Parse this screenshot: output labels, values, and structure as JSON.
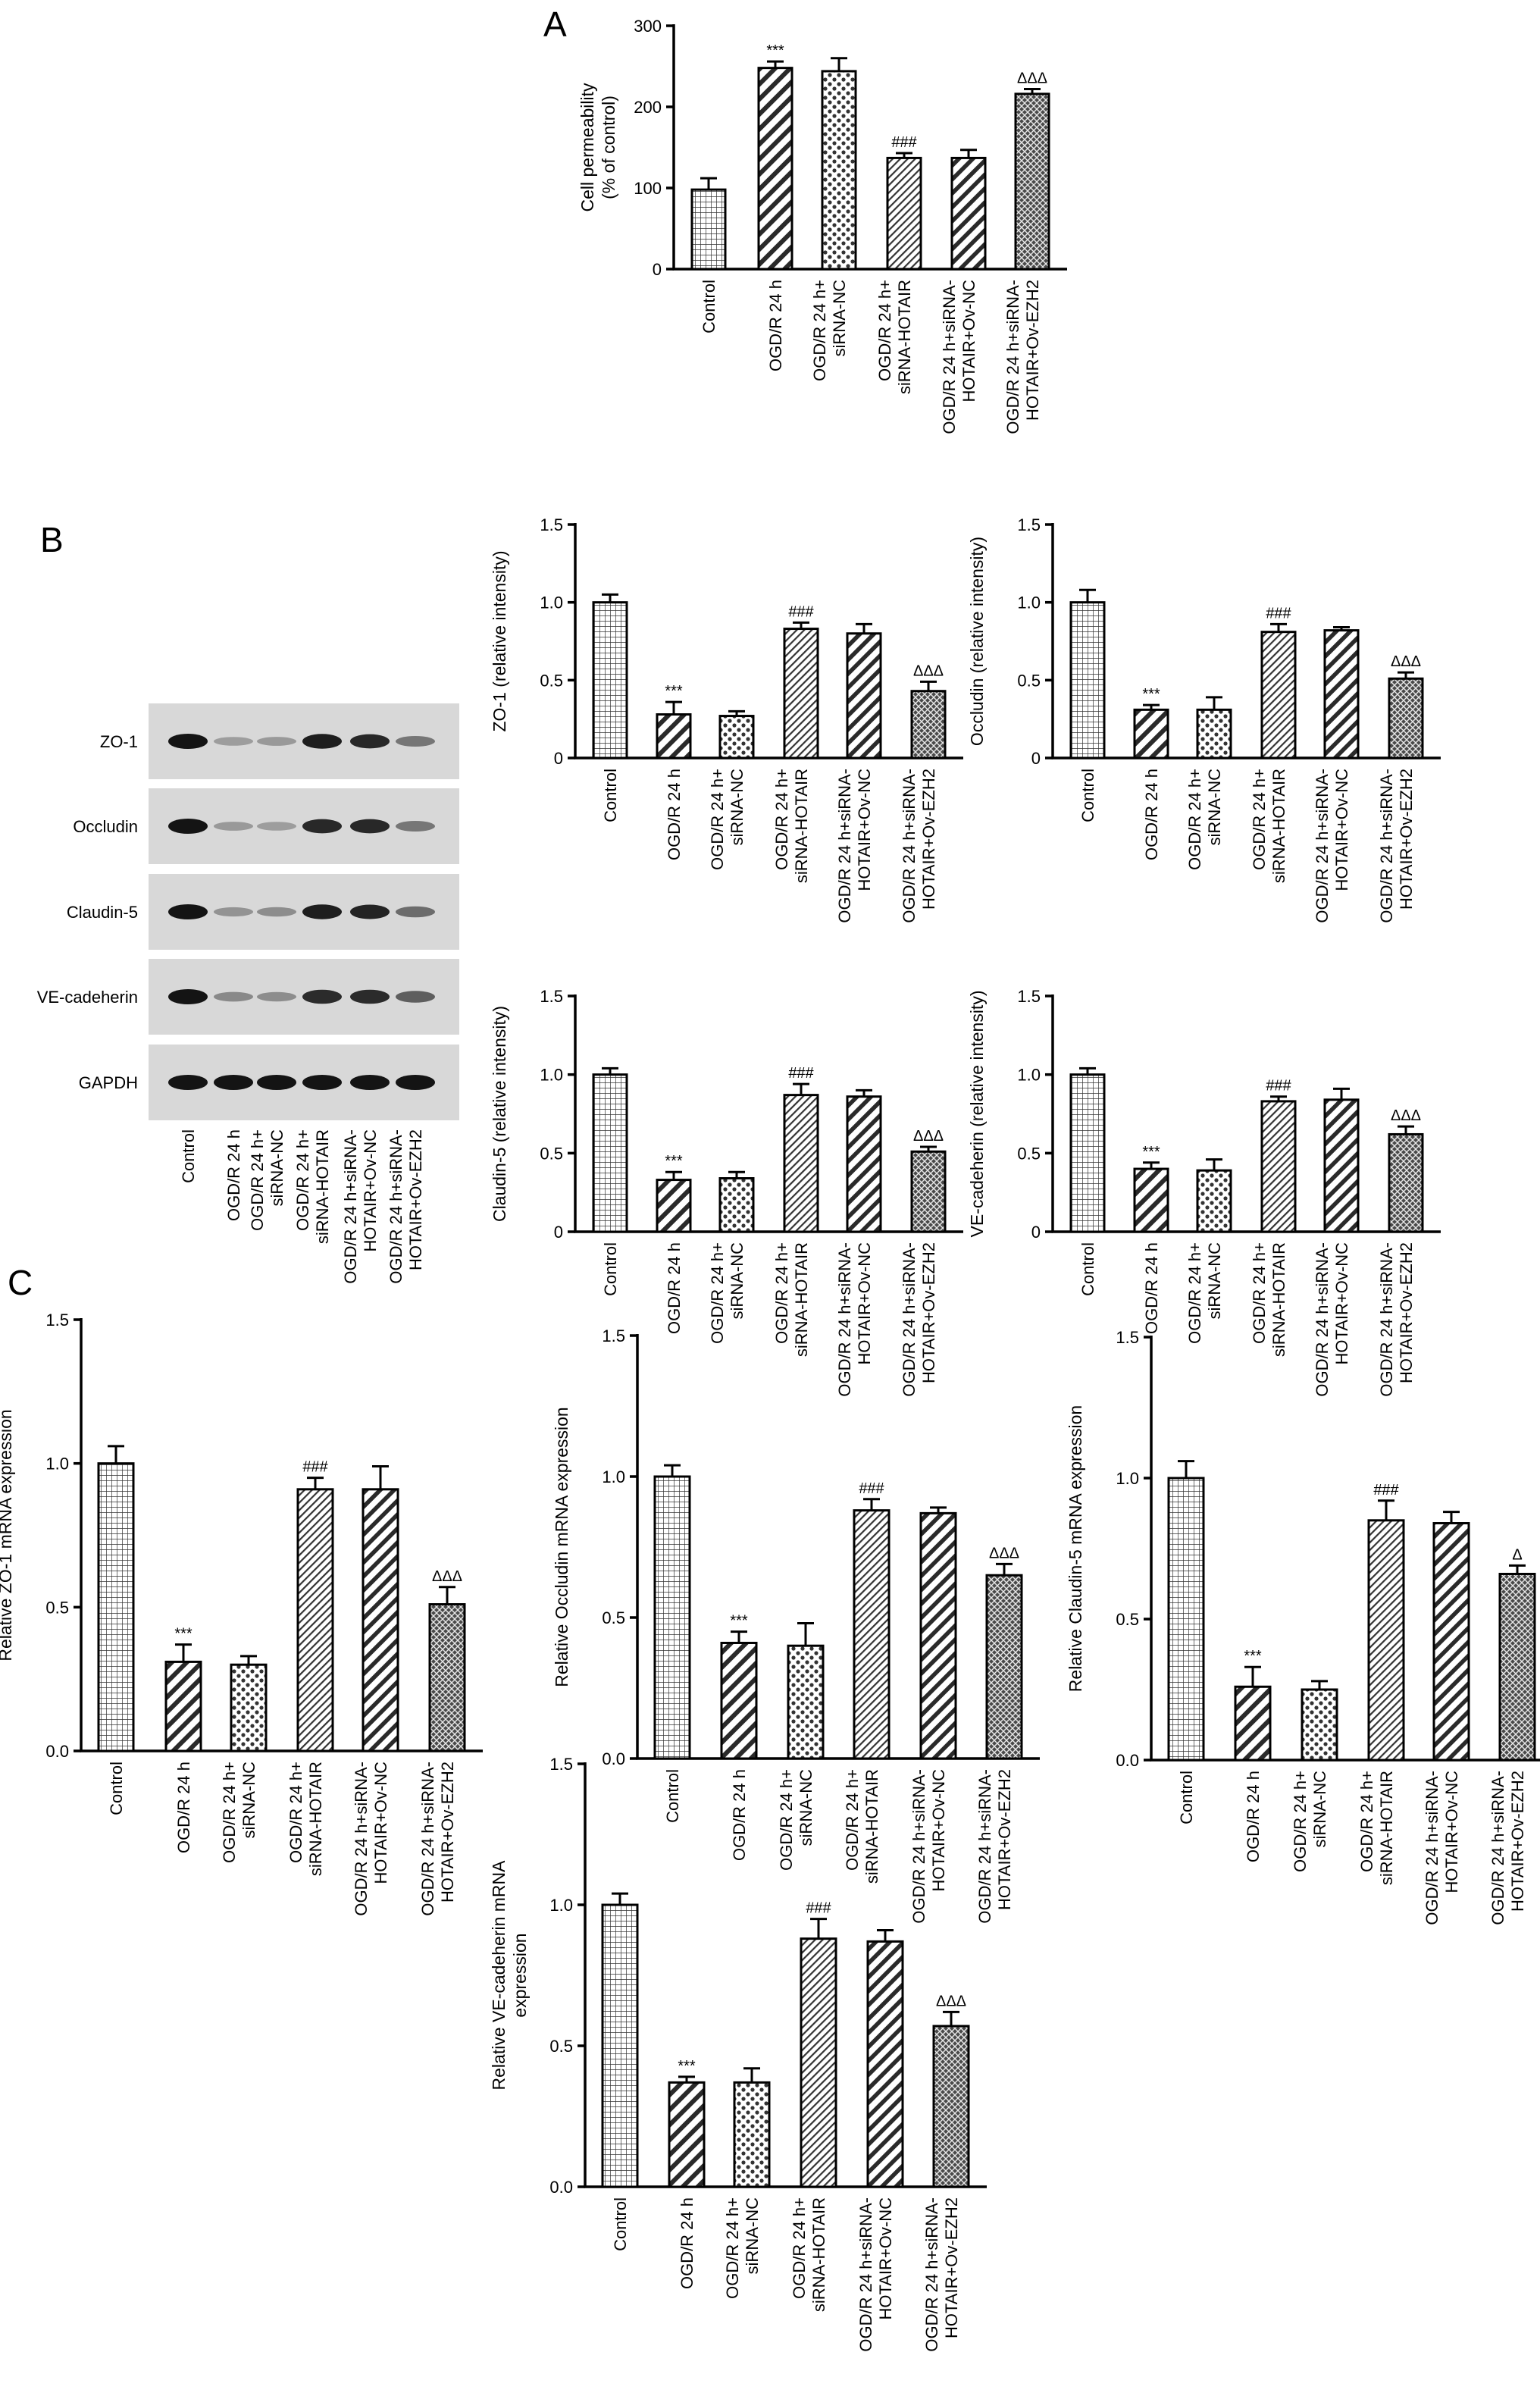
{
  "panel_labels": [
    "A",
    "B",
    "C"
  ],
  "chart_data": [
    {
      "id": "A",
      "type": "bar",
      "ylabel": [
        "Cell permeability",
        "(% of control)"
      ],
      "ylim": [
        0,
        300
      ],
      "yticks": [
        0,
        100,
        200,
        300
      ],
      "categories": [
        [
          "Control"
        ],
        [
          "OGD/R 24 h"
        ],
        [
          "OGD/R 24 h+",
          "siRNA-NC"
        ],
        [
          "OGD/R 24 h+",
          "siRNA-HOTAIR"
        ],
        [
          "OGD/R 24 h+siRNA-",
          "HOTAIR+Ov-NC"
        ],
        [
          "OGD/R 24 h+siRNA-",
          "HOTAIR+Ov-EZH2"
        ]
      ],
      "values": [
        98,
        248,
        244,
        137,
        137,
        216
      ],
      "errors": [
        14,
        8,
        16,
        6,
        10,
        6
      ],
      "significance": [
        "",
        "***",
        "",
        "###",
        "",
        "ΔΔΔ"
      ]
    },
    {
      "id": "B-ZO1",
      "type": "bar",
      "ylabel": [
        "ZO-1 (relative intensity)"
      ],
      "ylim": [
        0,
        1.5
      ],
      "yticks": [
        "0",
        "0.5",
        "1.0",
        "1.5"
      ],
      "categories": [
        [
          "Control"
        ],
        [
          "OGD/R 24 h"
        ],
        [
          "OGD/R 24 h+",
          "siRNA-NC"
        ],
        [
          "OGD/R 24 h+",
          "siRNA-HOTAIR"
        ],
        [
          "OGD/R 24 h+siRNA-",
          "HOTAIR+Ov-NC"
        ],
        [
          "OGD/R 24 h+siRNA-",
          "HOTAIR+Ov-EZH2"
        ]
      ],
      "values": [
        1.0,
        0.28,
        0.27,
        0.83,
        0.8,
        0.43
      ],
      "errors": [
        0.05,
        0.08,
        0.03,
        0.04,
        0.06,
        0.06
      ],
      "significance": [
        "",
        "***",
        "",
        "###",
        "",
        "ΔΔΔ"
      ]
    },
    {
      "id": "B-Occludin",
      "type": "bar",
      "ylabel": [
        "Occludin (relative intensity)"
      ],
      "ylim": [
        0,
        1.5
      ],
      "yticks": [
        "0",
        "0.5",
        "1.0",
        "1.5"
      ],
      "categories": [
        [
          "Control"
        ],
        [
          "OGD/R 24 h"
        ],
        [
          "OGD/R 24 h+",
          "siRNA-NC"
        ],
        [
          "OGD/R 24 h+",
          "siRNA-HOTAIR"
        ],
        [
          "OGD/R 24 h+siRNA-",
          "HOTAIR+Ov-NC"
        ],
        [
          "OGD/R 24 h+siRNA-",
          "HOTAIR+Ov-EZH2"
        ]
      ],
      "values": [
        1.0,
        0.31,
        0.31,
        0.81,
        0.82,
        0.51
      ],
      "errors": [
        0.08,
        0.03,
        0.08,
        0.05,
        0.02,
        0.04
      ],
      "significance": [
        "",
        "***",
        "",
        "###",
        "",
        "ΔΔΔ"
      ]
    },
    {
      "id": "B-Claudin5",
      "type": "bar",
      "ylabel": [
        "Claudin-5 (relative intensity)"
      ],
      "ylim": [
        0,
        1.5
      ],
      "yticks": [
        "0",
        "0.5",
        "1.0",
        "1.5"
      ],
      "categories": [
        [
          "Control"
        ],
        [
          "OGD/R 24 h"
        ],
        [
          "OGD/R 24 h+",
          "siRNA-NC"
        ],
        [
          "OGD/R 24 h+",
          "siRNA-HOTAIR"
        ],
        [
          "OGD/R 24 h+siRNA-",
          "HOTAIR+Ov-NC"
        ],
        [
          "OGD/R 24 h+siRNA-",
          "HOTAIR+Ov-EZH2"
        ]
      ],
      "values": [
        1.0,
        0.33,
        0.34,
        0.87,
        0.86,
        0.51
      ],
      "errors": [
        0.04,
        0.05,
        0.04,
        0.07,
        0.04,
        0.03
      ],
      "significance": [
        "",
        "***",
        "",
        "###",
        "",
        "ΔΔΔ"
      ]
    },
    {
      "id": "B-VEcad",
      "type": "bar",
      "ylabel": [
        "VE-cadeherin (relative intensity)"
      ],
      "ylim": [
        0,
        1.5
      ],
      "yticks": [
        "0",
        "0.5",
        "1.0",
        "1.5"
      ],
      "categories": [
        [
          "Control"
        ],
        [
          "OGD/R 24 h"
        ],
        [
          "OGD/R 24 h+",
          "siRNA-NC"
        ],
        [
          "OGD/R 24 h+",
          "siRNA-HOTAIR"
        ],
        [
          "OGD/R 24 h+siRNA-",
          "HOTAIR+Ov-NC"
        ],
        [
          "OGD/R 24 h+siRNA-",
          "HOTAIR+Ov-EZH2"
        ]
      ],
      "values": [
        1.0,
        0.4,
        0.39,
        0.83,
        0.84,
        0.62
      ],
      "errors": [
        0.04,
        0.04,
        0.07,
        0.03,
        0.07,
        0.05
      ],
      "significance": [
        "",
        "***",
        "",
        "###",
        "",
        "ΔΔΔ"
      ]
    },
    {
      "id": "C-ZO1",
      "type": "bar",
      "ylabel": [
        "Relative ZO-1 mRNA expression"
      ],
      "ylim": [
        0,
        1.5
      ],
      "yticks": [
        "0.0",
        "0.5",
        "1.0",
        "1.5"
      ],
      "categories": [
        [
          "Control"
        ],
        [
          "OGD/R 24 h"
        ],
        [
          "OGD/R 24 h+",
          "siRNA-NC"
        ],
        [
          "OGD/R 24 h+",
          "siRNA-HOTAIR"
        ],
        [
          "OGD/R 24 h+siRNA-",
          "HOTAIR+Ov-NC"
        ],
        [
          "OGD/R 24 h+siRNA-",
          "HOTAIR+Ov-EZH2"
        ]
      ],
      "values": [
        1.0,
        0.31,
        0.3,
        0.91,
        0.91,
        0.51
      ],
      "errors": [
        0.06,
        0.06,
        0.03,
        0.04,
        0.08,
        0.06
      ],
      "significance": [
        "",
        "***",
        "",
        "###",
        "",
        "ΔΔΔ"
      ]
    },
    {
      "id": "C-Occludin",
      "type": "bar",
      "ylabel": [
        "Relative Occludin mRNA expression"
      ],
      "ylim": [
        0,
        1.5
      ],
      "yticks": [
        "0.0",
        "0.5",
        "1.0",
        "1.5"
      ],
      "categories": [
        [
          "Control"
        ],
        [
          "OGD/R 24 h"
        ],
        [
          "OGD/R 24 h+",
          "siRNA-NC"
        ],
        [
          "OGD/R 24 h+",
          "siRNA-HOTAIR"
        ],
        [
          "OGD/R 24 h+siRNA-",
          "HOTAIR+Ov-NC"
        ],
        [
          "OGD/R 24 h+siRNA-",
          "HOTAIR+Ov-EZH2"
        ]
      ],
      "values": [
        1.0,
        0.41,
        0.4,
        0.88,
        0.87,
        0.65
      ],
      "errors": [
        0.04,
        0.04,
        0.08,
        0.04,
        0.02,
        0.04
      ],
      "significance": [
        "",
        "***",
        "",
        "###",
        "",
        "ΔΔΔ"
      ]
    },
    {
      "id": "C-Claudin5",
      "type": "bar",
      "ylabel": [
        "Relative Claudin-5 mRNA expression"
      ],
      "ylim": [
        0,
        1.5
      ],
      "yticks": [
        "0.0",
        "0.5",
        "1.0",
        "1.5"
      ],
      "categories": [
        [
          "Control"
        ],
        [
          "OGD/R 24 h"
        ],
        [
          "OGD/R 24 h+",
          "siRNA-NC"
        ],
        [
          "OGD/R 24 h+",
          "siRNA-HOTAIR"
        ],
        [
          "OGD/R 24 h+siRNA-",
          "HOTAIR+Ov-NC"
        ],
        [
          "OGD/R 24 h+siRNA-",
          "HOTAIR+Ov-EZH2"
        ]
      ],
      "values": [
        1.0,
        0.26,
        0.25,
        0.85,
        0.84,
        0.66
      ],
      "errors": [
        0.06,
        0.07,
        0.03,
        0.07,
        0.04,
        0.03
      ],
      "significance": [
        "",
        "***",
        "",
        "###",
        "",
        "Δ"
      ]
    },
    {
      "id": "C-VEcad",
      "type": "bar",
      "ylabel": [
        "Relative VE-cadeherin mRNA",
        "expression"
      ],
      "ylim": [
        0,
        1.5
      ],
      "yticks": [
        "0.0",
        "0.5",
        "1.0",
        "1.5"
      ],
      "categories": [
        [
          "Control"
        ],
        [
          "OGD/R 24 h"
        ],
        [
          "OGD/R 24 h+",
          "siRNA-NC"
        ],
        [
          "OGD/R 24 h+",
          "siRNA-HOTAIR"
        ],
        [
          "OGD/R 24 h+siRNA-",
          "HOTAIR+Ov-NC"
        ],
        [
          "OGD/R 24 h+siRNA-",
          "HOTAIR+Ov-EZH2"
        ]
      ],
      "values": [
        1.0,
        0.37,
        0.37,
        0.88,
        0.87,
        0.57
      ],
      "errors": [
        0.04,
        0.02,
        0.05,
        0.07,
        0.04,
        0.05
      ],
      "significance": [
        "",
        "***",
        "",
        "###",
        "",
        "ΔΔΔ"
      ]
    }
  ],
  "western_blot": {
    "rows": [
      "ZO-1",
      "Occludin",
      "Claudin-5",
      "VE-cadeherin",
      "GAPDH"
    ],
    "lanes": [
      [
        "Control"
      ],
      [
        "OGD/R 24 h"
      ],
      [
        "OGD/R 24 h+",
        "siRNA-NC"
      ],
      [
        "OGD/R 24 h+",
        "siRNA-HOTAIR"
      ],
      [
        "OGD/R 24 h+siRNA-",
        "HOTAIR+Ov-NC"
      ],
      [
        "OGD/R 24 h+siRNA-",
        "HOTAIR+Ov-EZH2"
      ]
    ],
    "band_intensity": [
      [
        1.0,
        0.3,
        0.32,
        0.95,
        0.9,
        0.5
      ],
      [
        1.0,
        0.32,
        0.3,
        0.9,
        0.9,
        0.5
      ],
      [
        1.0,
        0.35,
        0.38,
        0.95,
        0.92,
        0.55
      ],
      [
        1.0,
        0.4,
        0.38,
        0.88,
        0.88,
        0.62
      ],
      [
        1.0,
        1.0,
        1.0,
        1.0,
        1.0,
        1.0
      ]
    ]
  }
}
